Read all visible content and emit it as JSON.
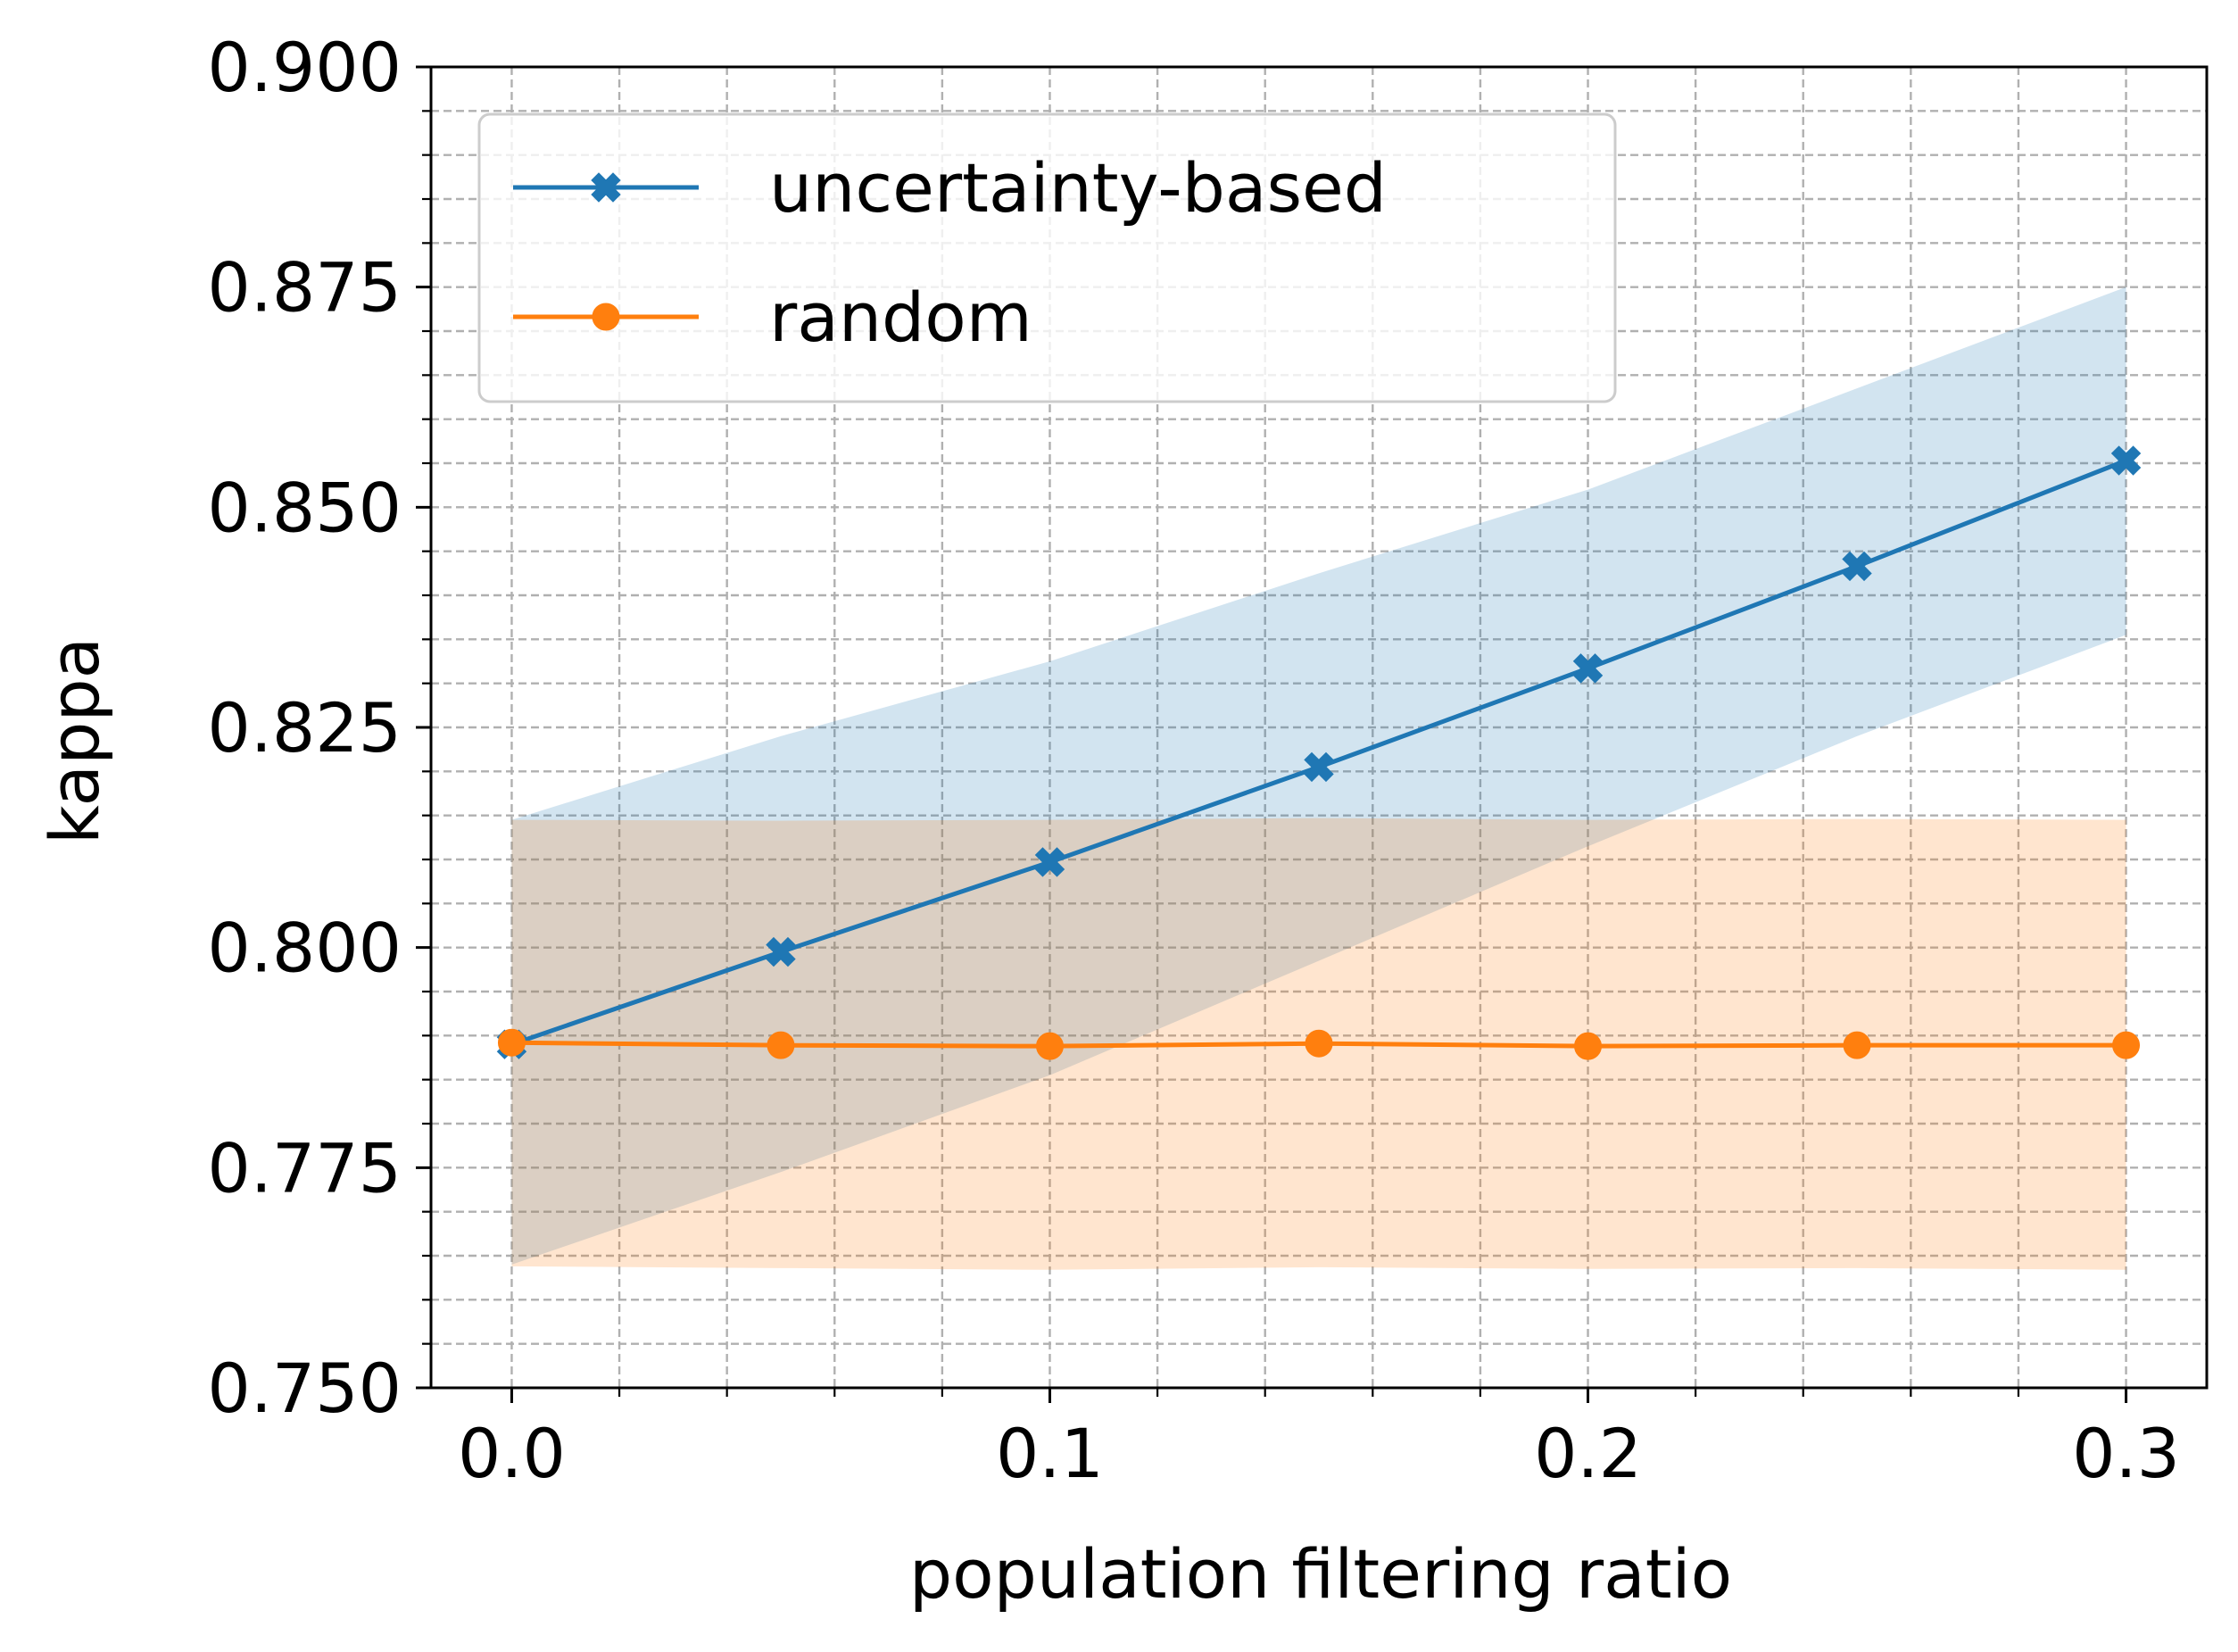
{
  "chart_data": {
    "type": "line",
    "xlabel": "population filtering ratio",
    "ylabel": "kappa",
    "xlim": [
      -0.015,
      0.315
    ],
    "ylim": [
      0.75,
      0.9
    ],
    "x": [
      0.0,
      0.05,
      0.1,
      0.15,
      0.2,
      0.25,
      0.3
    ],
    "x_ticks": [
      0.0,
      0.1,
      0.2,
      0.3
    ],
    "x_tick_labels": [
      "0.0",
      "0.1",
      "0.2",
      "0.3"
    ],
    "x_minor_ticks": [
      0.02,
      0.04,
      0.06,
      0.08,
      0.12,
      0.14,
      0.16,
      0.18,
      0.22,
      0.24,
      0.26,
      0.28
    ],
    "y_ticks": [
      0.75,
      0.775,
      0.8,
      0.825,
      0.85,
      0.875,
      0.9
    ],
    "y_tick_labels": [
      "0.750",
      "0.775",
      "0.800",
      "0.825",
      "0.850",
      "0.875",
      "0.900"
    ],
    "y_minor_ticks": [
      0.755,
      0.76,
      0.765,
      0.77,
      0.78,
      0.785,
      0.79,
      0.795,
      0.805,
      0.81,
      0.815,
      0.82,
      0.83,
      0.835,
      0.84,
      0.845,
      0.855,
      0.86,
      0.865,
      0.87,
      0.88,
      0.885,
      0.89,
      0.895
    ],
    "grid": true,
    "legend_position": "top-left",
    "series": [
      {
        "name": "uncertainty-based",
        "color": "#1f77b4",
        "marker": "x",
        "values": [
          0.789,
          0.7995,
          0.8097,
          0.8205,
          0.8317,
          0.8433,
          0.8553
        ],
        "band_lower": [
          0.764,
          0.7745,
          0.7855,
          0.7985,
          0.8115,
          0.824,
          0.8355
        ],
        "band_upper": [
          0.8145,
          0.824,
          0.8325,
          0.8425,
          0.852,
          0.8635,
          0.875
        ],
        "band_color": "#1f77b4"
      },
      {
        "name": "random",
        "color": "#ff7f0e",
        "marker": "o",
        "values": [
          0.7892,
          0.7889,
          0.7888,
          0.7891,
          0.7888,
          0.7889,
          0.7889
        ],
        "band_lower": [
          0.7638,
          0.7636,
          0.7634,
          0.7637,
          0.7635,
          0.7636,
          0.7634
        ],
        "band_upper": [
          0.8145,
          0.8144,
          0.8145,
          0.8147,
          0.8145,
          0.8146,
          0.8145
        ],
        "band_color": "#ff7f0e"
      }
    ]
  }
}
